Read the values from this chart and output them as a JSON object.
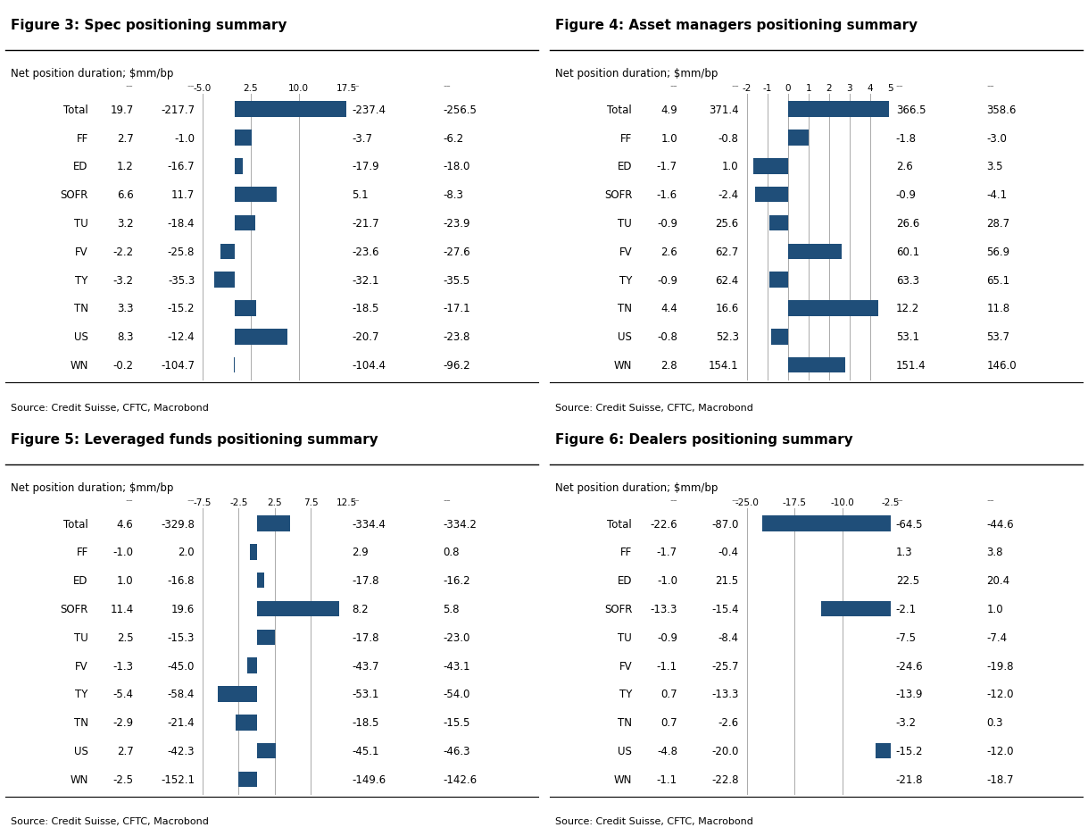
{
  "figures": [
    {
      "title": "Figure 3: Spec positioning summary",
      "subtitle": "Net position duration; $mm/bp",
      "source": "Source: Credit Suisse, CFTC, Macrobond",
      "categories": [
        "Total",
        "FF",
        "ED",
        "SOFR",
        "TU",
        "FV",
        "TY",
        "TN",
        "US",
        "WN"
      ],
      "col1": [
        19.7,
        2.7,
        1.2,
        6.6,
        3.2,
        -2.2,
        -3.2,
        3.3,
        8.3,
        -0.2
      ],
      "col2": [
        -217.7,
        -1.0,
        -16.7,
        11.7,
        -18.4,
        -25.8,
        -35.3,
        -15.2,
        -12.4,
        -104.7
      ],
      "bar_values": [
        19.7,
        2.7,
        1.2,
        6.6,
        3.2,
        -2.2,
        -3.2,
        3.3,
        8.3,
        -0.2
      ],
      "col3": [
        -237.4,
        -3.7,
        -17.9,
        5.1,
        -21.7,
        -23.6,
        -32.1,
        -18.5,
        -20.7,
        -104.4
      ],
      "col4": [
        -256.5,
        -6.2,
        -18.0,
        -8.3,
        -23.9,
        -27.6,
        -35.5,
        -17.1,
        -23.8,
        -96.2
      ],
      "xlim": [
        -5.0,
        17.5
      ],
      "xticks": [
        -5.0,
        2.5,
        10.0,
        17.5
      ],
      "bar_color": "#1F4E79"
    },
    {
      "title": "Figure 4: Asset managers positioning summary",
      "subtitle": "Net position duration; $mm/bp",
      "source": "Source: Credit Suisse, CFTC, Macrobond",
      "categories": [
        "Total",
        "FF",
        "ED",
        "SOFR",
        "TU",
        "FV",
        "TY",
        "TN",
        "US",
        "WN"
      ],
      "col1": [
        4.9,
        1.0,
        -1.7,
        -1.6,
        -0.9,
        2.6,
        -0.9,
        4.4,
        -0.8,
        2.8
      ],
      "col2": [
        371.4,
        -0.8,
        1.0,
        -2.4,
        25.6,
        62.7,
        62.4,
        16.6,
        52.3,
        154.1
      ],
      "bar_values": [
        4.9,
        1.0,
        -1.7,
        -1.6,
        -0.9,
        2.6,
        -0.9,
        4.4,
        -0.8,
        2.8
      ],
      "col3": [
        366.5,
        -1.8,
        2.6,
        -0.9,
        26.6,
        60.1,
        63.3,
        12.2,
        53.1,
        151.4
      ],
      "col4": [
        358.6,
        -3.0,
        3.5,
        -4.1,
        28.7,
        56.9,
        65.1,
        11.8,
        53.7,
        146.0
      ],
      "xlim": [
        -2.0,
        5.0
      ],
      "xticks": [
        -2,
        -1,
        0,
        1,
        2,
        3,
        4,
        5
      ],
      "bar_color": "#1F4E79"
    },
    {
      "title": "Figure 5: Leveraged funds positioning summary",
      "subtitle": "Net position duration; $mm/bp",
      "source": "Source: Credit Suisse, CFTC, Macrobond",
      "categories": [
        "Total",
        "FF",
        "ED",
        "SOFR",
        "TU",
        "FV",
        "TY",
        "TN",
        "US",
        "WN"
      ],
      "col1": [
        4.6,
        -1.0,
        1.0,
        11.4,
        2.5,
        -1.3,
        -5.4,
        -2.9,
        2.7,
        -2.5
      ],
      "col2": [
        -329.8,
        2.0,
        -16.8,
        19.6,
        -15.3,
        -45.0,
        -58.4,
        -21.4,
        -42.3,
        -152.1
      ],
      "bar_values": [
        4.6,
        -1.0,
        1.0,
        11.4,
        2.5,
        -1.3,
        -5.4,
        -2.9,
        2.7,
        -2.5
      ],
      "col3": [
        -334.4,
        2.9,
        -17.8,
        8.2,
        -17.8,
        -43.7,
        -53.1,
        -18.5,
        -45.1,
        -149.6
      ],
      "col4": [
        -334.2,
        0.8,
        -16.2,
        5.8,
        -23.0,
        -43.1,
        -54.0,
        -15.5,
        -46.3,
        -142.6
      ],
      "xlim": [
        -7.5,
        12.5
      ],
      "xticks": [
        -7.5,
        -2.5,
        2.5,
        7.5,
        12.5
      ],
      "bar_color": "#1F4E79"
    },
    {
      "title": "Figure 6: Dealers positioning summary",
      "subtitle": "Net position duration; $mm/bp",
      "source": "Source: Credit Suisse, CFTC, Macrobond",
      "categories": [
        "Total",
        "FF",
        "ED",
        "SOFR",
        "TU",
        "FV",
        "TY",
        "TN",
        "US",
        "WN"
      ],
      "col1": [
        -22.6,
        -1.7,
        -1.0,
        -13.3,
        -0.9,
        -1.1,
        0.7,
        0.7,
        -4.8,
        -1.1
      ],
      "col2": [
        -87.0,
        -0.4,
        21.5,
        -15.4,
        -8.4,
        -25.7,
        -13.3,
        -2.6,
        -20.0,
        -22.8
      ],
      "bar_values": [
        -22.6,
        -1.7,
        -1.0,
        -13.3,
        -0.9,
        -1.1,
        0.7,
        0.7,
        -4.8,
        -1.1
      ],
      "col3": [
        -64.5,
        1.3,
        22.5,
        -2.1,
        -7.5,
        -24.6,
        -13.9,
        -3.2,
        -15.2,
        -21.8
      ],
      "col4": [
        -44.6,
        3.8,
        20.4,
        1.0,
        -7.4,
        -19.8,
        -12.0,
        0.3,
        -12.0,
        -18.7
      ],
      "xlim": [
        -25.0,
        -2.5
      ],
      "xticks": [
        -25.0,
        -17.5,
        -10.0,
        -2.5
      ],
      "bar_color": "#1F4E79"
    }
  ],
  "background_color": "#FFFFFF",
  "bar_color": "#1F4E79",
  "gridline_color": "#AAAAAA",
  "data_fontsize": 8.5,
  "title_fontsize": 11,
  "subtitle_fontsize": 8.5,
  "source_fontsize": 8.0,
  "tick_fontsize": 7.5,
  "dash_color": "#888888"
}
